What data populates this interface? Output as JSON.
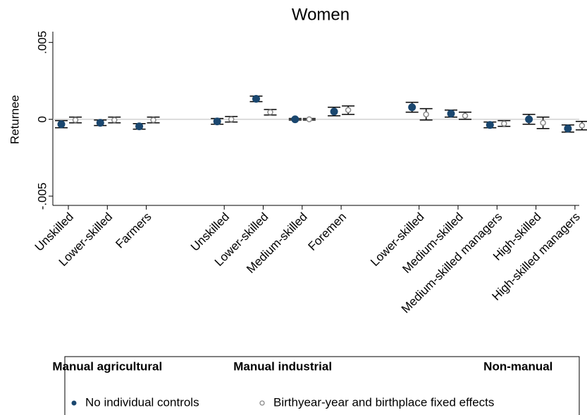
{
  "chart_data": {
    "type": "errorbar",
    "title": "Women",
    "ylabel": "Returnee",
    "categories": [
      "Unskilled",
      "Lower-skilled",
      "Farmers",
      null,
      "Unskilled",
      "Lower-skilled",
      "Medium-skilled",
      "Foremen",
      null,
      "Lower-skilled",
      "Medium-skilled",
      "Medium-skilled managers",
      "High-skilled",
      "High-skilled managers"
    ],
    "groups": [
      "Manual agricultural",
      "Manual industrial",
      "Non-manual"
    ],
    "series": [
      {
        "name": "No individual controls",
        "color": "#1a476f",
        "marker": "filled",
        "values": [
          -0.00032,
          -0.00023,
          -0.00046,
          null,
          -0.00014,
          0.00133,
          0,
          0.0005,
          null,
          0.00078,
          0.00037,
          -0.00037,
          0,
          -0.0006
        ],
        "lower": [
          -0.00055,
          -0.00041,
          -0.00064,
          null,
          -0.00032,
          0.00115,
          -5e-05,
          0.00023,
          null,
          0.00046,
          0.00014,
          -0.00055,
          -0.00032,
          -0.00083
        ],
        "upper": [
          -9e-05,
          -5e-05,
          -0.00028,
          null,
          5e-05,
          0.00151,
          5e-05,
          0.00078,
          null,
          0.0011,
          0.0006,
          -0.00018,
          0.00032,
          -0.00037
        ]
      },
      {
        "name": "Birthyear-year and birthplace fixed effects",
        "color": "#8a8a8a",
        "marker": "hollow",
        "values": [
          -5e-05,
          -5e-05,
          -5e-05,
          null,
          0,
          0.00046,
          0,
          0.0006,
          null,
          0.00032,
          0.00023,
          -0.00028,
          -0.00023,
          -0.00041
        ],
        "lower": [
          -0.00023,
          -0.00023,
          -0.00023,
          null,
          -0.00018,
          0.00028,
          -5e-05,
          0.00032,
          null,
          -5e-05,
          0,
          -0.00046,
          -0.0006,
          -0.00069
        ],
        "upper": [
          0.00014,
          0.00014,
          0.00014,
          null,
          0.00018,
          0.00064,
          5e-05,
          0.00087,
          null,
          0.00069,
          0.00046,
          -9e-05,
          0.00014,
          -0.00014
        ]
      }
    ],
    "ylim": [
      -0.0056,
      0.0057
    ],
    "yticks": [
      {
        "value": -0.005,
        "label": "-.005"
      },
      0,
      {
        "value": 0.005,
        "label": ".005"
      }
    ],
    "yline": 0,
    "legend": "bottom"
  }
}
